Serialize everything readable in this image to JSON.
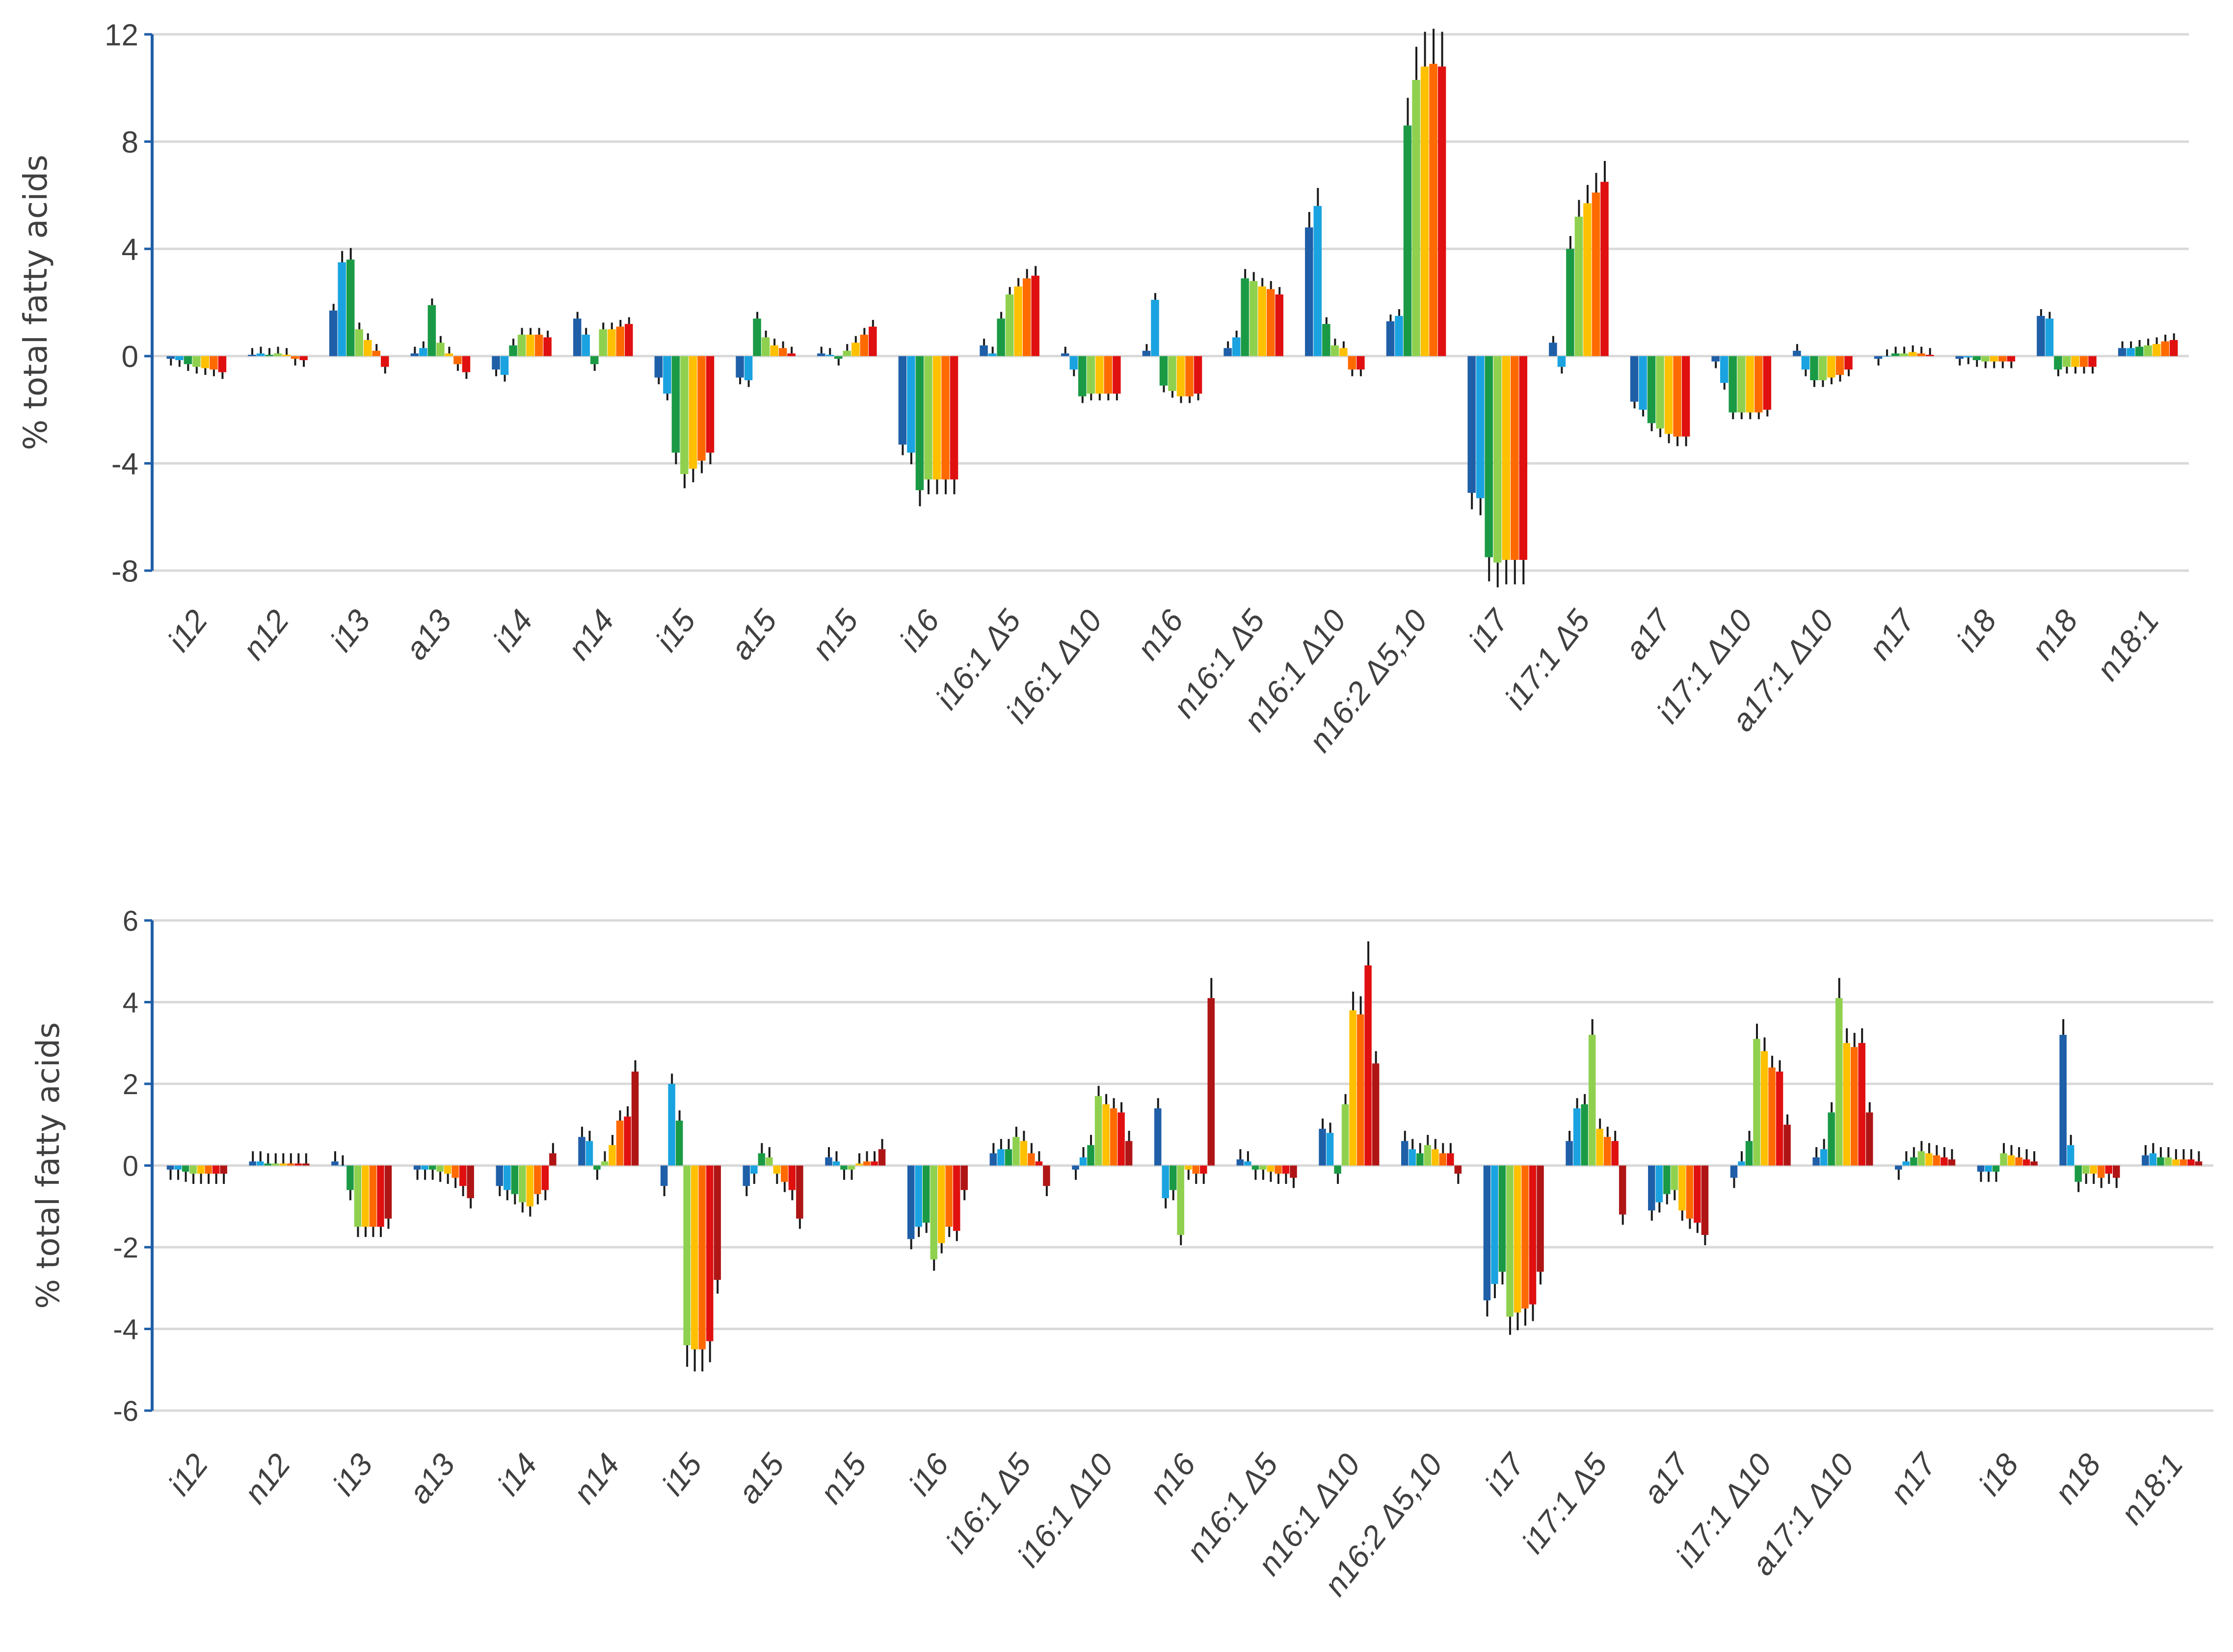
{
  "palette": [
    "#1f5fa8",
    "#1aa3e0",
    "#1b9a45",
    "#8fd14f",
    "#ffc000",
    "#ff6a00",
    "#e01010",
    "#b01515"
  ],
  "chart_data": [
    {
      "type": "bar",
      "ylabel": "% total fatty acids",
      "ylim": [
        -8,
        12
      ],
      "yticks": [
        -8,
        -4,
        0,
        4,
        8,
        12
      ],
      "ytick_labels": [
        "-8",
        "-4",
        "0",
        "4",
        "8",
        "12"
      ],
      "grid": true,
      "categories": [
        "i12",
        "n12",
        "i13",
        "a13",
        "i14",
        "n14",
        "i15",
        "a15",
        "n15",
        "i16",
        "i16:1 Δ5",
        "i16:1 Δ10",
        "n16",
        "n16:1 Δ5",
        "n16:1 Δ10",
        "n16:2 Δ5,10",
        "i17",
        "i17:1 Δ5",
        "a17",
        "i17:1 Δ10",
        "a17:1 Δ10",
        "n17",
        "i18",
        "n18",
        "n18:1"
      ],
      "values": [
        [
          -0.1,
          -0.15,
          -0.3,
          -0.4,
          -0.45,
          -0.5,
          -0.6
        ],
        [
          0.05,
          0.1,
          0.05,
          0.1,
          0.05,
          -0.1,
          -0.15
        ],
        [
          1.7,
          3.5,
          3.6,
          1.0,
          0.6,
          0.2,
          -0.4
        ],
        [
          0.1,
          0.3,
          1.9,
          0.5,
          0.1,
          -0.3,
          -0.6
        ],
        [
          -0.5,
          -0.7,
          0.4,
          0.8,
          0.8,
          0.8,
          0.7
        ],
        [
          1.4,
          0.8,
          -0.3,
          1.0,
          1.0,
          1.1,
          1.2
        ],
        [
          -0.8,
          -1.4,
          -3.6,
          -4.4,
          -4.2,
          -3.9,
          -3.6
        ],
        [
          -0.8,
          -0.9,
          1.4,
          0.7,
          0.4,
          0.3,
          0.1
        ],
        [
          0.1,
          0.05,
          -0.1,
          0.2,
          0.5,
          0.8,
          1.1
        ],
        [
          -3.3,
          -3.6,
          -5.0,
          -4.6,
          -4.6,
          -4.6,
          -4.6
        ],
        [
          0.4,
          0.1,
          1.4,
          2.3,
          2.6,
          2.9,
          3.0
        ],
        [
          0.1,
          -0.5,
          -1.5,
          -1.4,
          -1.4,
          -1.4,
          -1.4
        ],
        [
          0.2,
          2.1,
          -1.1,
          -1.3,
          -1.5,
          -1.5,
          -1.4
        ],
        [
          0.3,
          0.7,
          2.9,
          2.8,
          2.6,
          2.5,
          2.3
        ],
        [
          4.8,
          5.6,
          1.2,
          0.4,
          0.3,
          -0.5,
          -0.5
        ],
        [
          1.3,
          1.5,
          8.6,
          10.3,
          10.8,
          10.9,
          10.8
        ],
        [
          -5.1,
          -5.3,
          -7.5,
          -7.7,
          -7.6,
          -7.6,
          -7.6
        ],
        [
          0.5,
          -0.4,
          4.0,
          5.2,
          5.7,
          6.1,
          6.5
        ],
        [
          -1.7,
          -2.0,
          -2.5,
          -2.7,
          -2.9,
          -3.0,
          -3.0
        ],
        [
          -0.2,
          -1.0,
          -2.1,
          -2.1,
          -2.1,
          -2.1,
          -2.0
        ],
        [
          0.2,
          -0.5,
          -0.9,
          -0.9,
          -0.8,
          -0.7,
          -0.5
        ],
        [
          -0.1,
          0.0,
          0.1,
          0.1,
          0.15,
          0.1,
          0.05
        ],
        [
          -0.1,
          -0.05,
          -0.15,
          -0.2,
          -0.2,
          -0.2,
          -0.2
        ],
        [
          1.5,
          1.4,
          -0.5,
          -0.4,
          -0.4,
          -0.4,
          -0.4
        ],
        [
          0.3,
          0.3,
          0.35,
          0.4,
          0.45,
          0.55,
          0.6
        ]
      ]
    },
    {
      "type": "bar",
      "ylabel": "% total fatty acids",
      "ylim": [
        -6,
        6
      ],
      "yticks": [
        -6,
        -4,
        -2,
        0,
        2,
        4,
        6
      ],
      "ytick_labels": [
        "-6",
        "-4",
        "-2",
        "0",
        "2",
        "4",
        "6"
      ],
      "grid": true,
      "categories": [
        "i12",
        "n12",
        "i13",
        "a13",
        "i14",
        "n14",
        "i15",
        "a15",
        "n15",
        "i16",
        "i16:1 Δ5",
        "i16:1 Δ10",
        "n16",
        "n16:1 Δ5",
        "n16:1 Δ10",
        "n16:2 Δ5,10",
        "i17",
        "i17:1 Δ5",
        "a17",
        "i17:1 Δ10",
        "a17:1 Δ10",
        "n17",
        "i18",
        "n18",
        "n18:1"
      ],
      "values": [
        [
          -0.1,
          -0.1,
          -0.15,
          -0.2,
          -0.2,
          -0.2,
          -0.2,
          -0.2
        ],
        [
          0.1,
          0.1,
          0.05,
          0.05,
          0.05,
          0.05,
          0.05,
          0.05
        ],
        [
          0.1,
          0.0,
          -0.6,
          -1.5,
          -1.5,
          -1.5,
          -1.5,
          -1.3
        ],
        [
          -0.1,
          -0.1,
          -0.1,
          -0.15,
          -0.2,
          -0.3,
          -0.5,
          -0.8
        ],
        [
          -0.5,
          -0.6,
          -0.7,
          -0.9,
          -1.0,
          -0.7,
          -0.6,
          0.3
        ],
        [
          0.7,
          0.6,
          -0.1,
          0.1,
          0.5,
          1.1,
          1.2,
          2.3
        ],
        [
          -0.5,
          2.0,
          1.1,
          -4.4,
          -4.5,
          -4.5,
          -4.3,
          -2.8
        ],
        [
          -0.5,
          -0.2,
          0.3,
          0.2,
          -0.2,
          -0.4,
          -0.6,
          -1.3
        ],
        [
          0.2,
          0.1,
          -0.1,
          -0.1,
          0.05,
          0.1,
          0.1,
          0.4
        ],
        [
          -1.8,
          -1.5,
          -1.4,
          -2.3,
          -1.9,
          -1.5,
          -1.6,
          -0.6
        ],
        [
          0.3,
          0.4,
          0.4,
          0.7,
          0.6,
          0.3,
          0.1,
          -0.5
        ],
        [
          -0.1,
          0.2,
          0.5,
          1.7,
          1.5,
          1.4,
          1.3,
          0.6
        ],
        [
          1.4,
          -0.8,
          -0.6,
          -1.7,
          -0.1,
          -0.2,
          -0.2,
          4.1
        ],
        [
          0.15,
          0.1,
          -0.1,
          -0.1,
          -0.15,
          -0.2,
          -0.2,
          -0.3
        ],
        [
          0.9,
          0.8,
          -0.2,
          1.5,
          3.8,
          3.7,
          4.9,
          2.5
        ],
        [
          0.6,
          0.4,
          0.3,
          0.5,
          0.4,
          0.3,
          0.3,
          -0.2
        ],
        [
          -3.3,
          -2.9,
          -2.6,
          -3.7,
          -3.6,
          -3.5,
          -3.4,
          -2.6
        ],
        [
          0.6,
          1.4,
          1.5,
          3.2,
          0.9,
          0.7,
          0.6,
          -1.2
        ],
        [
          -1.1,
          -0.9,
          -0.7,
          -0.6,
          -1.1,
          -1.3,
          -1.4,
          -1.7
        ],
        [
          -0.3,
          0.1,
          0.6,
          3.1,
          2.8,
          2.4,
          2.3,
          1.0
        ],
        [
          0.2,
          0.4,
          1.3,
          4.1,
          3.0,
          2.9,
          3.0,
          1.3
        ],
        [
          -0.1,
          0.1,
          0.2,
          0.35,
          0.3,
          0.25,
          0.2,
          0.15
        ],
        [
          -0.15,
          -0.15,
          -0.15,
          0.3,
          0.25,
          0.2,
          0.15,
          0.1
        ],
        [
          3.2,
          0.5,
          -0.4,
          -0.2,
          -0.2,
          -0.3,
          -0.2,
          -0.3
        ],
        [
          0.25,
          0.3,
          0.2,
          0.2,
          0.15,
          0.15,
          0.15,
          0.1
        ]
      ]
    }
  ]
}
